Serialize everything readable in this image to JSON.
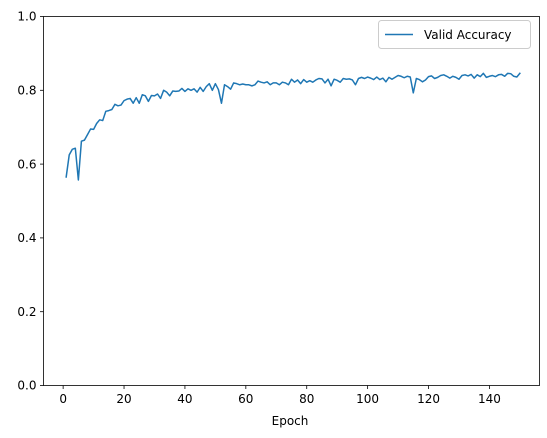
{
  "chart_data": {
    "type": "line",
    "title": "",
    "xlabel": "Epoch",
    "ylabel": "",
    "xlim": [
      -6.45,
      156.45
    ],
    "ylim": [
      0.0,
      1.0
    ],
    "xticks": [
      0,
      20,
      40,
      60,
      80,
      100,
      120,
      140
    ],
    "yticks": [
      0.0,
      0.2,
      0.4,
      0.6,
      0.8,
      1.0
    ],
    "xtick_labels": [
      "0",
      "20",
      "40",
      "60",
      "80",
      "100",
      "120",
      "140"
    ],
    "ytick_labels": [
      "0.0",
      "0.2",
      "0.4",
      "0.6",
      "0.8",
      "1.0"
    ],
    "grid": false,
    "legend_position": "top-right",
    "color": "#1f77b4",
    "series": [
      {
        "name": "Valid Accuracy",
        "x": [
          1,
          2,
          3,
          4,
          5,
          6,
          7,
          8,
          9,
          10,
          11,
          12,
          13,
          14,
          15,
          16,
          17,
          18,
          19,
          20,
          21,
          22,
          23,
          24,
          25,
          26,
          27,
          28,
          29,
          30,
          31,
          32,
          33,
          34,
          35,
          36,
          37,
          38,
          39,
          40,
          41,
          42,
          43,
          44,
          45,
          46,
          47,
          48,
          49,
          50,
          51,
          52,
          53,
          54,
          55,
          56,
          57,
          58,
          59,
          60,
          61,
          62,
          63,
          64,
          65,
          66,
          67,
          68,
          69,
          70,
          71,
          72,
          73,
          74,
          75,
          76,
          77,
          78,
          79,
          80,
          81,
          82,
          83,
          84,
          85,
          86,
          87,
          88,
          89,
          90,
          91,
          92,
          93,
          94,
          95,
          96,
          97,
          98,
          99,
          100,
          101,
          102,
          103,
          104,
          105,
          106,
          107,
          108,
          109,
          110,
          111,
          112,
          113,
          114,
          115,
          116,
          117,
          118,
          119,
          120,
          121,
          122,
          123,
          124,
          125,
          126,
          127,
          128,
          129,
          130,
          131,
          132,
          133,
          134,
          135,
          136,
          137,
          138,
          139,
          140,
          141,
          142,
          143,
          144,
          145,
          146,
          147,
          148,
          149,
          150
        ],
        "values": [
          0.565,
          0.625,
          0.64,
          0.643,
          0.557,
          0.662,
          0.665,
          0.68,
          0.695,
          0.694,
          0.71,
          0.72,
          0.718,
          0.743,
          0.745,
          0.748,
          0.762,
          0.758,
          0.76,
          0.772,
          0.776,
          0.778,
          0.765,
          0.78,
          0.765,
          0.788,
          0.785,
          0.77,
          0.786,
          0.785,
          0.79,
          0.778,
          0.8,
          0.795,
          0.785,
          0.798,
          0.797,
          0.798,
          0.805,
          0.797,
          0.804,
          0.8,
          0.804,
          0.795,
          0.808,
          0.797,
          0.81,
          0.818,
          0.8,
          0.818,
          0.802,
          0.765,
          0.815,
          0.81,
          0.803,
          0.82,
          0.818,
          0.815,
          0.817,
          0.815,
          0.815,
          0.812,
          0.815,
          0.825,
          0.822,
          0.82,
          0.823,
          0.815,
          0.82,
          0.82,
          0.815,
          0.822,
          0.82,
          0.815,
          0.83,
          0.822,
          0.828,
          0.818,
          0.829,
          0.822,
          0.826,
          0.822,
          0.828,
          0.832,
          0.831,
          0.82,
          0.83,
          0.812,
          0.83,
          0.827,
          0.822,
          0.832,
          0.83,
          0.831,
          0.828,
          0.815,
          0.832,
          0.835,
          0.832,
          0.836,
          0.833,
          0.829,
          0.836,
          0.829,
          0.833,
          0.823,
          0.835,
          0.83,
          0.835,
          0.84,
          0.838,
          0.834,
          0.838,
          0.836,
          0.793,
          0.832,
          0.829,
          0.823,
          0.828,
          0.837,
          0.839,
          0.832,
          0.835,
          0.84,
          0.842,
          0.838,
          0.833,
          0.838,
          0.835,
          0.83,
          0.84,
          0.842,
          0.839,
          0.843,
          0.833,
          0.842,
          0.837,
          0.846,
          0.835,
          0.838,
          0.84,
          0.837,
          0.842,
          0.843,
          0.838,
          0.846,
          0.845,
          0.838,
          0.836,
          0.846
        ]
      }
    ]
  }
}
